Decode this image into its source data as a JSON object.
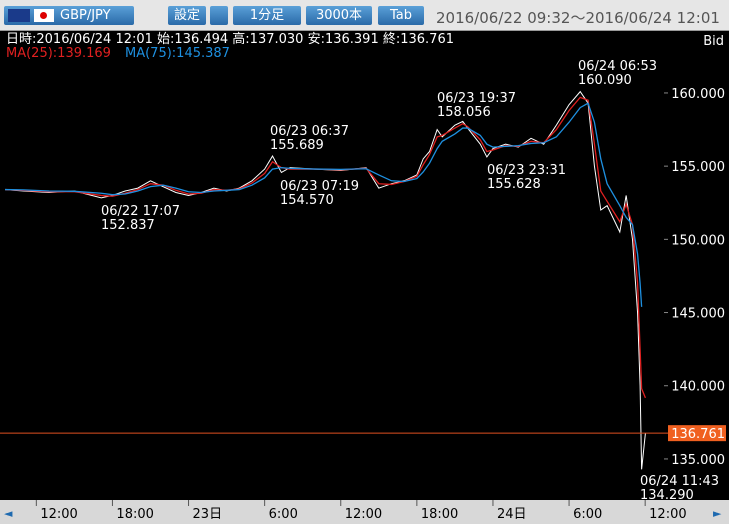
{
  "toolbar": {
    "pair": "GBP/JPY",
    "settings": "設定",
    "timeframe": "1分足",
    "count": "3000本",
    "tab": "Tab",
    "range": "2016/06/22 09:32～2016/06/24 12:01"
  },
  "info": {
    "ohlc": "日時:2016/06/24 12:01 始:136.494 高:137.030 安:136.391 終:136.761",
    "ma25": "MA(25):139.169",
    "ma75": "MA(75):145.387",
    "side": "Bid"
  },
  "chart_data": {
    "type": "line",
    "x": [
      9.53,
      11,
      13,
      15,
      17.12,
      18,
      19,
      20,
      21,
      22,
      23,
      24,
      25,
      26,
      27,
      28,
      29,
      30,
      30.62,
      31.32,
      32,
      34,
      36,
      38,
      39,
      40,
      41,
      42,
      42.5,
      43,
      43.6,
      44,
      45,
      45.62,
      46,
      47,
      47.52,
      48,
      49,
      50,
      51,
      52,
      53,
      54,
      54.88,
      55.5,
      56,
      56.5,
      57,
      58,
      58.5,
      59,
      59.4,
      59.6,
      59.72,
      60.02
    ],
    "series": [
      {
        "color": "#ffffff",
        "values": [
          153.4,
          153.3,
          153.2,
          153.3,
          152.837,
          153.0,
          153.3,
          153.5,
          154.0,
          153.6,
          153.2,
          153.0,
          153.2,
          153.5,
          153.3,
          153.5,
          154.0,
          154.8,
          155.689,
          154.57,
          154.9,
          154.8,
          154.7,
          154.9,
          153.5,
          153.8,
          154.0,
          154.4,
          155.5,
          156.0,
          157.5,
          157.0,
          157.8,
          158.056,
          157.6,
          156.5,
          155.628,
          156.2,
          156.5,
          156.3,
          156.9,
          156.5,
          157.8,
          159.2,
          160.09,
          159.3,
          155.0,
          152.0,
          152.3,
          150.5,
          153.0,
          150.0,
          145.0,
          140.0,
          134.29,
          136.761
        ]
      },
      {
        "color": "#e02020",
        "values": [
          153.4,
          153.35,
          153.25,
          153.25,
          153.0,
          152.95,
          153.15,
          153.4,
          153.8,
          153.7,
          153.35,
          153.1,
          153.15,
          153.4,
          153.35,
          153.45,
          153.85,
          154.5,
          155.3,
          154.9,
          154.8,
          154.8,
          154.75,
          154.85,
          153.8,
          153.75,
          153.95,
          154.3,
          155.1,
          155.8,
          157.0,
          157.1,
          157.6,
          157.9,
          157.7,
          156.8,
          156.0,
          156.1,
          156.4,
          156.35,
          156.7,
          156.6,
          157.5,
          158.8,
          159.7,
          159.5,
          156.5,
          153.3,
          152.6,
          151.2,
          152.4,
          151.0,
          147.0,
          142.5,
          139.8,
          139.169
        ]
      },
      {
        "color": "#1e90e0",
        "values": [
          153.4,
          153.38,
          153.3,
          153.28,
          153.15,
          153.05,
          153.1,
          153.3,
          153.6,
          153.7,
          153.5,
          153.25,
          153.2,
          153.3,
          153.35,
          153.4,
          153.7,
          154.2,
          154.8,
          154.9,
          154.85,
          154.8,
          154.78,
          154.82,
          154.4,
          154.0,
          153.95,
          154.15,
          154.6,
          155.2,
          156.2,
          156.7,
          157.2,
          157.6,
          157.6,
          157.1,
          156.5,
          156.3,
          156.35,
          156.4,
          156.55,
          156.6,
          157.0,
          158.0,
          159.0,
          159.3,
          158.0,
          155.5,
          153.8,
          152.3,
          151.5,
          151.0,
          149.0,
          147.0,
          145.387,
          null
        ]
      }
    ],
    "ylim": [
      132.4,
      164.3
    ],
    "yticks": [
      {
        "value": 135,
        "label": "135.000"
      },
      {
        "value": 140,
        "label": "140.000"
      },
      {
        "value": 145,
        "label": "145.000"
      },
      {
        "value": 150,
        "label": "150.000"
      },
      {
        "value": 155,
        "label": "155.000"
      },
      {
        "value": 160,
        "label": "160.000"
      }
    ],
    "xlim": [
      9.53,
      61.8
    ],
    "xticks": [
      {
        "value": 12,
        "label": "12:00"
      },
      {
        "value": 18,
        "label": "18:00"
      },
      {
        "value": 24,
        "label": "23日"
      },
      {
        "value": 30,
        "label": "6:00"
      },
      {
        "value": 36,
        "label": "12:00"
      },
      {
        "value": 42,
        "label": "18:00"
      },
      {
        "value": 48,
        "label": "24日"
      },
      {
        "value": 54,
        "label": "6:00"
      },
      {
        "value": 60,
        "label": "12:00"
      }
    ],
    "last": 136.761,
    "annotations": [
      [
        "06/22 17:07",
        "152.837"
      ],
      [
        "06/23 06:37",
        "155.689"
      ],
      [
        "06/23 07:19",
        "154.570"
      ],
      [
        "06/23 19:37",
        "158.056"
      ],
      [
        "06/23 23:31",
        "155.628"
      ],
      [
        "06/24 06:53",
        "160.090"
      ],
      [
        "06/24 11:43",
        "134.290"
      ]
    ]
  }
}
